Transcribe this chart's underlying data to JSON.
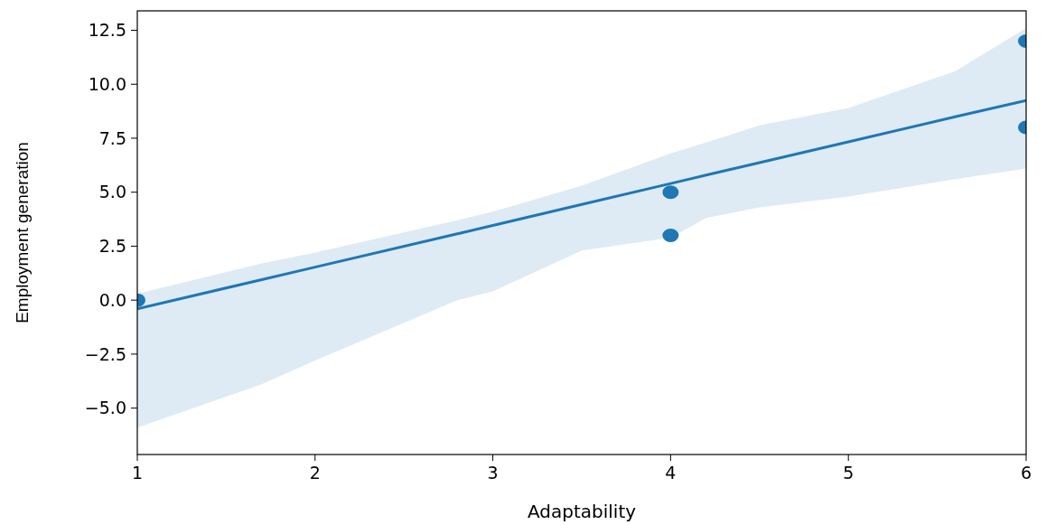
{
  "chart_data": {
    "type": "scatter",
    "xlabel": "Adaptability",
    "ylabel": "Employment generation",
    "xlim": [
      1,
      6
    ],
    "ylim": [
      -7.15,
      13.4
    ],
    "xticks": [
      1,
      2,
      3,
      4,
      5,
      6
    ],
    "yticks": [
      {
        "value": -5,
        "label": "−5.0"
      },
      {
        "value": -2.5,
        "label": "−2.5"
      },
      {
        "value": 0,
        "label": "0.0"
      },
      {
        "value": 2.5,
        "label": "2.5"
      },
      {
        "value": 5,
        "label": "5.0"
      },
      {
        "value": 7.5,
        "label": "7.5"
      },
      {
        "value": 10,
        "label": "10.0"
      },
      {
        "value": 12.5,
        "label": "12.5"
      }
    ],
    "grid": false,
    "series": [
      {
        "color": "#1f77b4",
        "marker": "circle",
        "x": [
          1,
          4,
          4,
          6,
          6
        ],
        "values": [
          0,
          5,
          3,
          12,
          8
        ]
      },
      {
        "type": "line",
        "color": "#1f77b4",
        "x": [
          1,
          1.7,
          2,
          2.8,
          3,
          3.5,
          4,
          4.2,
          4.5,
          5,
          5.6,
          6
        ],
        "values": [
          -0.4,
          0.95,
          1.53,
          3.07,
          3.46,
          4.43,
          5.4,
          5.79,
          6.37,
          7.33,
          8.49,
          9.25
        ],
        "lower": [
          -5.9,
          -3.9,
          -2.8,
          0,
          0.4,
          2.3,
          2.9,
          3.8,
          4.3,
          4.8,
          5.6,
          6.1
        ],
        "upper": [
          0.3,
          1.7,
          2.2,
          3.7,
          4.1,
          5.3,
          6.8,
          7.3,
          8.1,
          8.9,
          10.6,
          12.6
        ]
      }
    ]
  }
}
